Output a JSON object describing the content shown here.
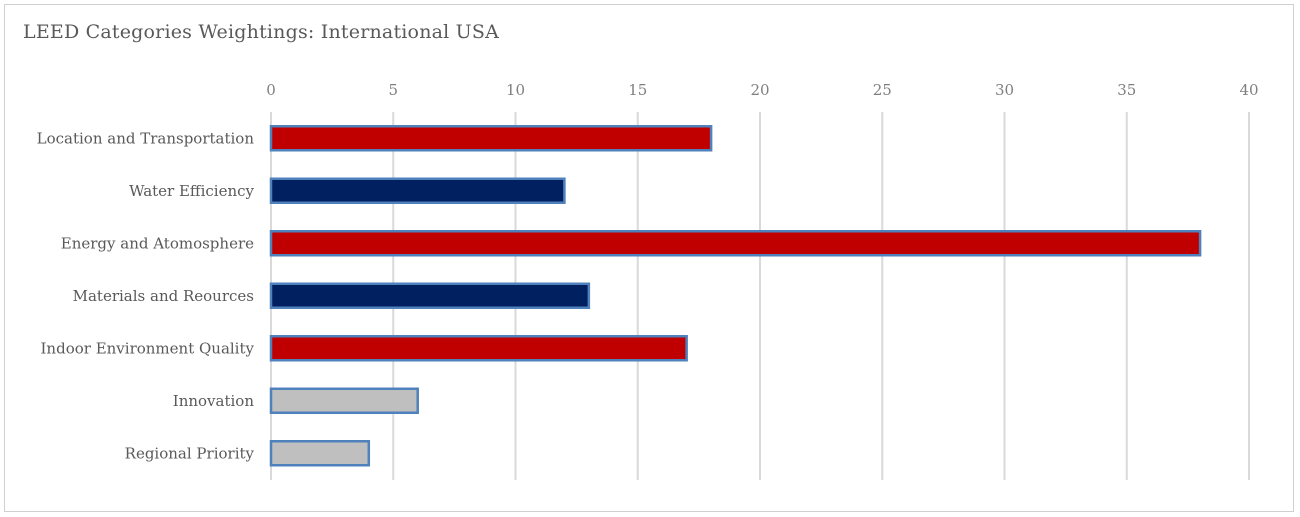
{
  "chart_data": {
    "type": "bar",
    "orientation": "horizontal",
    "title": "LEED Categories Weightings: International USA",
    "xlabel": "",
    "ylabel": "",
    "xlim": [
      0,
      40
    ],
    "x_ticks": [
      0,
      5,
      10,
      15,
      20,
      25,
      30,
      35,
      40
    ],
    "x_axis_position": "top",
    "grid": "vertical",
    "legend": "none",
    "categories": [
      "Location and Transportation",
      "Water Efficiency",
      "Energy and Atomosphere",
      "Materials and Reources",
      "Indoor Environment Quality",
      "Innovation",
      "Regional Priority"
    ],
    "values": [
      18,
      12,
      38,
      13,
      17,
      6,
      4
    ],
    "bar_colors": [
      "#c00000",
      "#002060",
      "#c00000",
      "#002060",
      "#c00000",
      "#bfbfbf",
      "#bfbfbf"
    ],
    "bar_border_color": "#4f81bd",
    "grid_color": "#d9d9d9"
  }
}
